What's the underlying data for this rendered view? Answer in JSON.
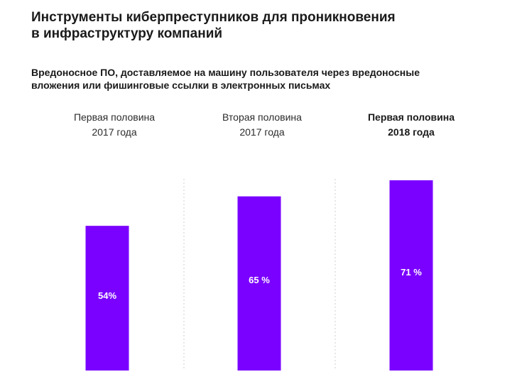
{
  "title": "Инструменты киберпреступников для проникновения\nв инфраструктуру компаний",
  "subtitle": "Вредоносное ПО, доставляемое на машину пользователя через вредоносные\nвложения или фишинговые ссылки в электронных письмах",
  "colors": {
    "bar": "#7a00ff",
    "divider": "#cfcfcf"
  },
  "chart_data": {
    "type": "bar",
    "categories": [
      "Первая половина\n2017 года",
      "Вторая половина\n2017 года",
      "Первая половина\n2018 года"
    ],
    "categories_bold": [
      false,
      false,
      true
    ],
    "values": [
      54,
      65,
      71
    ],
    "value_labels": [
      "54%",
      "65 %",
      "71 %"
    ],
    "unit": "%",
    "title": "Вредоносное ПО, доставляемое на машину пользователя через вредоносные вложения или фишинговые ссылки в электронных письмах",
    "xlabel": "",
    "ylabel": "",
    "ylim": [
      0,
      71
    ],
    "grid": false
  }
}
